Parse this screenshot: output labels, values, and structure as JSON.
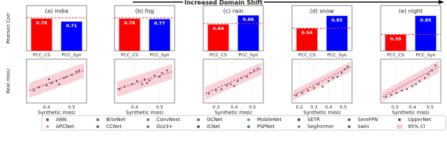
{
  "banner": "Increased Domain Shift",
  "chart_data": [
    {
      "type": "bar",
      "title": "(a) india",
      "ylabel": "Pearson Corr",
      "categories": [
        "PCC_CS",
        "PCC_Syn"
      ],
      "values": [
        0.78,
        0.71
      ],
      "colors": [
        "#ff0000",
        "#0000ff"
      ],
      "reference_line": 0.8,
      "reference_color": "#e03030",
      "ylim": [
        0,
        1.1
      ]
    },
    {
      "type": "bar",
      "title": "(b) fog",
      "categories": [
        "PCC_CS",
        "PCC_Syn"
      ],
      "values": [
        0.78,
        0.77
      ],
      "colors": [
        "#ff0000",
        "#0000ff"
      ],
      "reference_line": 0.8,
      "reference_color": "#e03030",
      "ylim": [
        0,
        1.1
      ]
    },
    {
      "type": "bar",
      "title": "(c) rain",
      "categories": [
        "PCC_CS",
        "PCC_Syn"
      ],
      "values": [
        0.64,
        0.86
      ],
      "colors": [
        "#ff0000",
        "#0000ff"
      ],
      "reference_line": 0.66,
      "reference_color": "#e03030",
      "ylim": [
        0,
        1.1
      ]
    },
    {
      "type": "bar",
      "title": "(d) snow",
      "categories": [
        "PCC_CS",
        "PCC_Syn"
      ],
      "values": [
        0.54,
        0.85
      ],
      "colors": [
        "#ff0000",
        "#0000ff"
      ],
      "reference_line": 0.55,
      "reference_color": "#e03030",
      "ylim": [
        0,
        1.1
      ]
    },
    {
      "type": "bar",
      "title": "(e) night",
      "categories": [
        "PCC_CS",
        "PCC_Syn"
      ],
      "values": [
        0.39,
        0.85
      ],
      "colors": [
        "#ff0000",
        "#0000ff"
      ],
      "reference_line": 0.4,
      "reference_color": "#e03030",
      "ylim": [
        0,
        1.1
      ]
    },
    {
      "type": "scatter",
      "ylabel": "Real mIoU",
      "xlabel": "Synthetic mIoU",
      "x": [
        0.35,
        0.37,
        0.4,
        0.42,
        0.44,
        0.45,
        0.47,
        0.48,
        0.5,
        0.52,
        0.53,
        0.41
      ],
      "y": [
        0.4,
        0.45,
        0.48,
        0.52,
        0.55,
        0.5,
        0.6,
        0.62,
        0.65,
        0.7,
        0.72,
        0.58
      ],
      "point_color": "#555555",
      "fit": {
        "x": [
          0.33,
          0.55
        ],
        "y": [
          0.4,
          0.72
        ],
        "color": "#b03050"
      },
      "ci": {
        "lower": [
          0.28,
          0.6
        ],
        "upper": [
          0.52,
          0.84
        ],
        "color": "#f7c6cc"
      },
      "xlim": [
        0.32,
        0.56
      ],
      "xticks": [
        0.4,
        0.5
      ],
      "ylim": [
        0.2,
        0.9
      ]
    },
    {
      "type": "scatter",
      "xlabel": "Synthetic mIoU",
      "x": [
        0.34,
        0.36,
        0.39,
        0.41,
        0.43,
        0.44,
        0.46,
        0.48,
        0.5,
        0.51,
        0.53,
        0.45
      ],
      "y": [
        0.42,
        0.46,
        0.5,
        0.55,
        0.5,
        0.58,
        0.56,
        0.64,
        0.62,
        0.68,
        0.72,
        0.52
      ],
      "point_color": "#555555",
      "fit": {
        "x": [
          0.33,
          0.55
        ],
        "y": [
          0.42,
          0.7
        ],
        "color": "#b03050"
      },
      "ci": {
        "lower": [
          0.3,
          0.58
        ],
        "upper": [
          0.54,
          0.82
        ],
        "color": "#f7c6cc"
      },
      "xlim": [
        0.32,
        0.56
      ],
      "xticks": [
        0.4,
        0.5
      ],
      "ylim": [
        0.2,
        0.9
      ]
    },
    {
      "type": "scatter",
      "xlabel": "Synthetic mIoU",
      "x": [
        0.26,
        0.3,
        0.33,
        0.36,
        0.38,
        0.4,
        0.42,
        0.44,
        0.47,
        0.49,
        0.51,
        0.53
      ],
      "y": [
        0.35,
        0.4,
        0.42,
        0.48,
        0.5,
        0.47,
        0.55,
        0.6,
        0.62,
        0.68,
        0.72,
        0.75
      ],
      "point_color": "#555555",
      "fit": {
        "x": [
          0.24,
          0.55
        ],
        "y": [
          0.35,
          0.75
        ],
        "color": "#b03050"
      },
      "ci": {
        "lower": [
          0.25,
          0.65
        ],
        "upper": [
          0.45,
          0.85
        ],
        "color": "#f7c6cc"
      },
      "xlim": [
        0.23,
        0.56
      ],
      "xticks": [
        0.3,
        0.4,
        0.5
      ],
      "ylim": [
        0.2,
        0.9
      ]
    },
    {
      "type": "scatter",
      "xlabel": "Synthetic mIoU",
      "x": [
        0.18,
        0.22,
        0.26,
        0.3,
        0.33,
        0.36,
        0.4,
        0.43,
        0.46,
        0.49,
        0.51,
        0.53
      ],
      "y": [
        0.32,
        0.36,
        0.4,
        0.44,
        0.5,
        0.46,
        0.55,
        0.6,
        0.62,
        0.68,
        0.74,
        0.78
      ],
      "point_color": "#555555",
      "fit": {
        "x": [
          0.16,
          0.55
        ],
        "y": [
          0.32,
          0.78
        ],
        "color": "#b03050"
      },
      "ci": {
        "lower": [
          0.24,
          0.7
        ],
        "upper": [
          0.4,
          0.86
        ],
        "color": "#f7c6cc"
      },
      "xlim": [
        0.15,
        0.56
      ],
      "xticks": [
        0.2,
        0.3,
        0.4,
        0.5
      ],
      "ylim": [
        0.2,
        0.9
      ]
    },
    {
      "type": "scatter",
      "xlabel": "Synthetic mIoU",
      "x": [
        0.25,
        0.28,
        0.31,
        0.34,
        0.37,
        0.4,
        0.42,
        0.44,
        0.47,
        0.49,
        0.51,
        0.53
      ],
      "y": [
        0.3,
        0.33,
        0.36,
        0.4,
        0.42,
        0.47,
        0.5,
        0.55,
        0.6,
        0.66,
        0.72,
        0.8
      ],
      "point_color": "#555555",
      "fit": {
        "x": [
          0.23,
          0.55
        ],
        "y": [
          0.3,
          0.78
        ],
        "color": "#b03050"
      },
      "ci": {
        "lower": [
          0.22,
          0.68
        ],
        "upper": [
          0.38,
          0.88
        ],
        "color": "#f7c6cc"
      },
      "xlim": [
        0.22,
        0.56
      ],
      "xticks": [
        0.3,
        0.4,
        0.5
      ],
      "ylim": [
        0.2,
        0.9
      ]
    }
  ],
  "legend": [
    {
      "name": "ANN",
      "color": "#555555"
    },
    {
      "name": "BiSeNet",
      "color": "#2e8b57"
    },
    {
      "name": "ConvNext",
      "color": "#777777"
    },
    {
      "name": "GCNet",
      "color": "#666666"
    },
    {
      "name": "MobileNet",
      "color": "#888888"
    },
    {
      "name": "SETR",
      "color": "#444444"
    },
    {
      "name": "SemFPN",
      "color": "#3a7d44"
    },
    {
      "name": "UpperNet",
      "color": "#555555"
    },
    {
      "name": "APCNet",
      "color": "#e88a9a"
    },
    {
      "name": "CCNet",
      "color": "#666666"
    },
    {
      "name": "DLV3+",
      "color": "#777777"
    },
    {
      "name": "ICNet",
      "color": "#555555"
    },
    {
      "name": "PSPNet",
      "color": "#2e8b57"
    },
    {
      "name": "SegFormer",
      "color": "#888888"
    },
    {
      "name": "Swin",
      "color": "#666666"
    },
    {
      "name": "95% CI",
      "color": "#f7c6cc"
    }
  ]
}
